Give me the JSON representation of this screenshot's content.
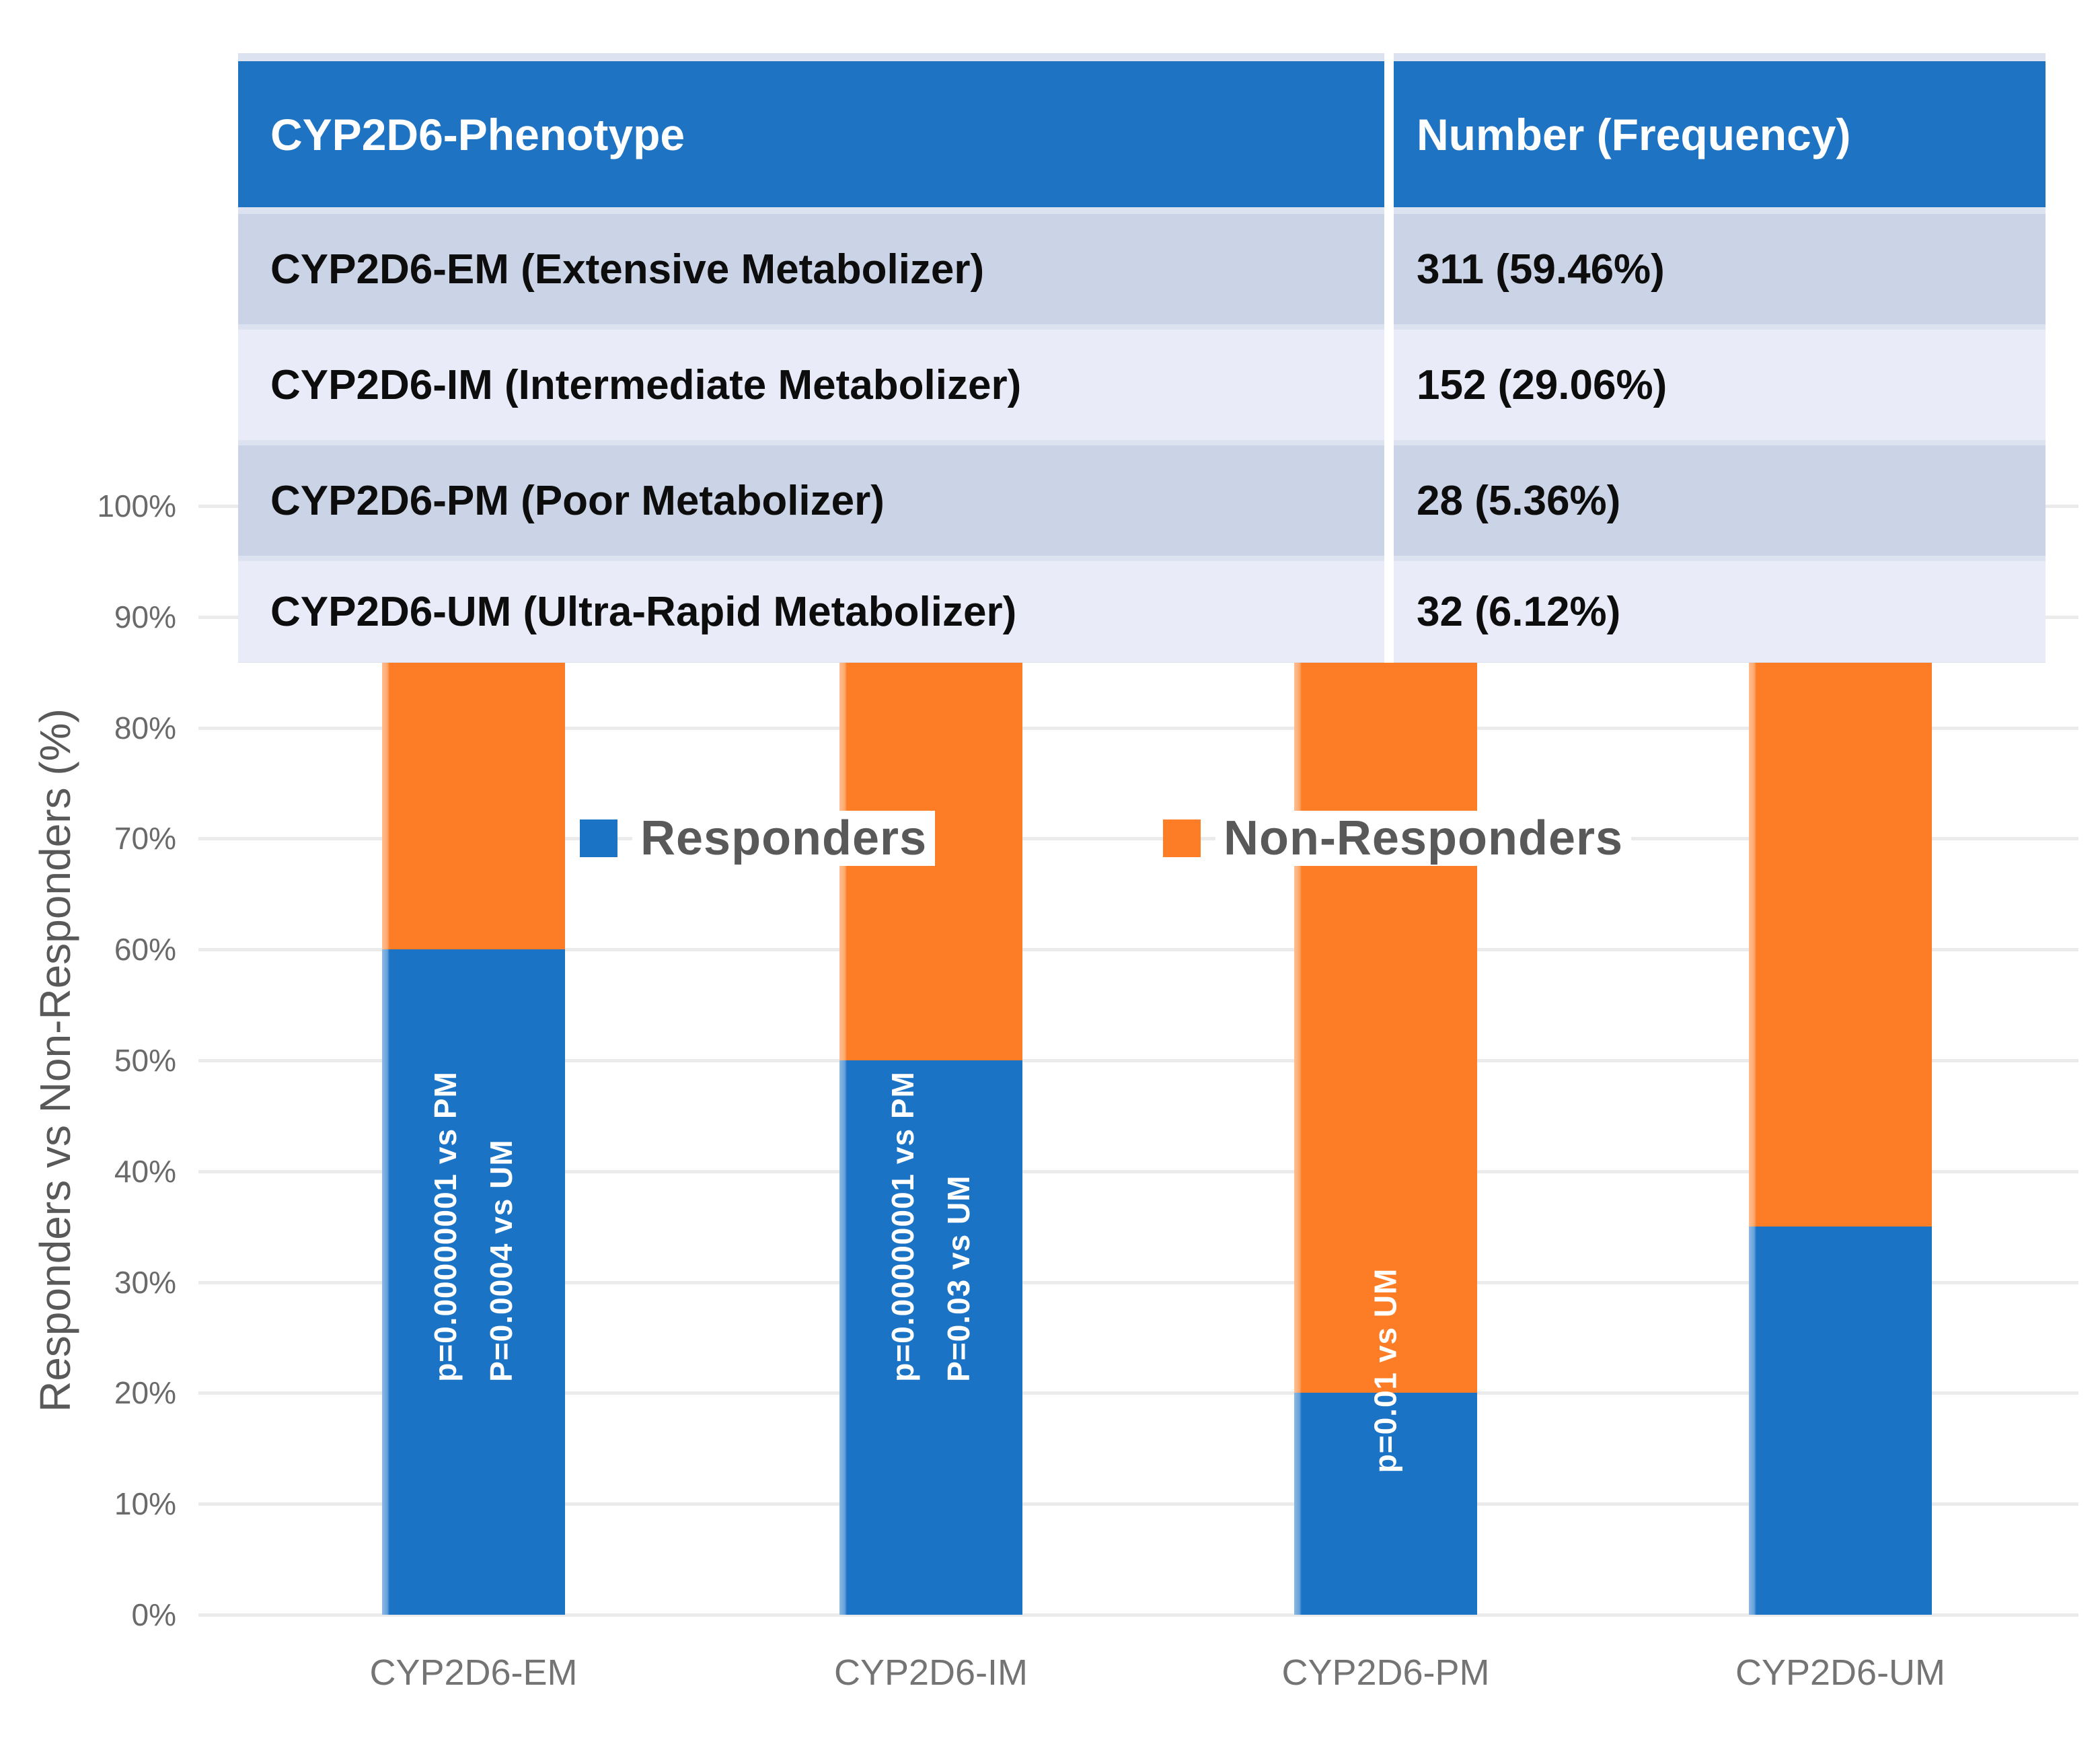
{
  "table": {
    "header": {
      "phenotype": "CYP2D6-Phenotype",
      "frequency": "Number (Frequency)"
    },
    "rows": [
      {
        "phenotype": "CYP2D6-EM (Extensive Metabolizer)",
        "value": "311 (59.46%)"
      },
      {
        "phenotype": "CYP2D6-IM (Intermediate Metabolizer)",
        "value": "152 (29.06%)"
      },
      {
        "phenotype": "CYP2D6-PM (Poor Metabolizer)",
        "value": "28 (5.36%)"
      },
      {
        "phenotype": "CYP2D6-UM (Ultra-Rapid Metabolizer)",
        "value": "32 (6.12%)"
      }
    ]
  },
  "chart_data": {
    "type": "bar",
    "stacked": true,
    "unit": "percent",
    "categories": [
      "CYP2D6-EM",
      "CYP2D6-IM",
      "CYP2D6-PM",
      "CYP2D6-UM"
    ],
    "series": [
      {
        "name": "Responders",
        "color": "#1b73c6",
        "values": [
          60,
          50,
          20,
          35
        ]
      },
      {
        "name": "Non-Responders",
        "color": "#fd7d26",
        "values": [
          40,
          50,
          80,
          65
        ]
      }
    ],
    "annotations": [
      {
        "category": "CYP2D6-EM",
        "lines": [
          "p=0.00000001 vs PM",
          "P=0.0004 vs UM"
        ]
      },
      {
        "category": "CYP2D6-IM",
        "lines": [
          "p=0.00000001 vs PM",
          "P=0.03 vs UM"
        ]
      },
      {
        "category": "CYP2D6-PM",
        "lines": [
          "p=0.01 vs UM"
        ]
      },
      {
        "category": "CYP2D6-UM",
        "lines": []
      }
    ],
    "title": "",
    "xlabel": "",
    "ylabel": "Responders vs Non-Responders (%)",
    "yticks": [
      "0%",
      "10%",
      "20%",
      "30%",
      "40%",
      "50%",
      "60%",
      "70%",
      "80%",
      "90%",
      "100%"
    ],
    "ylim": [
      0,
      100
    ],
    "grid": true,
    "legend_position": "inside-upper-middle"
  },
  "colors": {
    "responders_blue": "#1b73c6",
    "non_responders_orange": "#fd7d26",
    "table_header_blue": "#1e73c2",
    "table_row_dark": "#cbd3e6",
    "table_row_light": "#e9ecf8",
    "gridline_gray": "#ebebeb",
    "axis_text_gray": "#6a6a6a"
  }
}
